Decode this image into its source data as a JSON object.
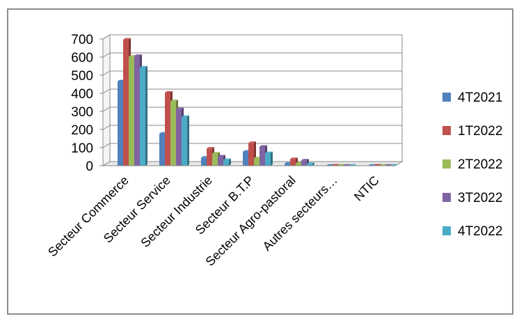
{
  "chart_data": {
    "type": "bar",
    "categories": [
      "Secteur Commerce",
      "Secteur Service",
      "Secteur Industrie",
      "Secteur B.T.P",
      "Secteur Agro-pastoral",
      "Autres secteurs…",
      "NTIC"
    ],
    "series": [
      {
        "name": "4T2021",
        "color": "#4f81bd",
        "values": [
          467,
          178,
          45,
          78,
          12,
          1,
          1
        ]
      },
      {
        "name": "1T2022",
        "color": "#c0504d",
        "values": [
          697,
          404,
          95,
          126,
          37,
          2,
          2
        ]
      },
      {
        "name": "2T2022",
        "color": "#9bbb59",
        "values": [
          603,
          357,
          68,
          42,
          14,
          2,
          1
        ]
      },
      {
        "name": "3T2022",
        "color": "#8064a2",
        "values": [
          607,
          313,
          52,
          106,
          30,
          1,
          1
        ]
      },
      {
        "name": "4T2022",
        "color": "#4bacc6",
        "values": [
          543,
          270,
          32,
          70,
          10,
          1,
          1
        ]
      }
    ],
    "yticks": [
      "0",
      "100",
      "200",
      "300",
      "400",
      "500",
      "600",
      "700"
    ],
    "ylim": [
      0,
      700
    ],
    "grid": true,
    "legend": "right"
  }
}
